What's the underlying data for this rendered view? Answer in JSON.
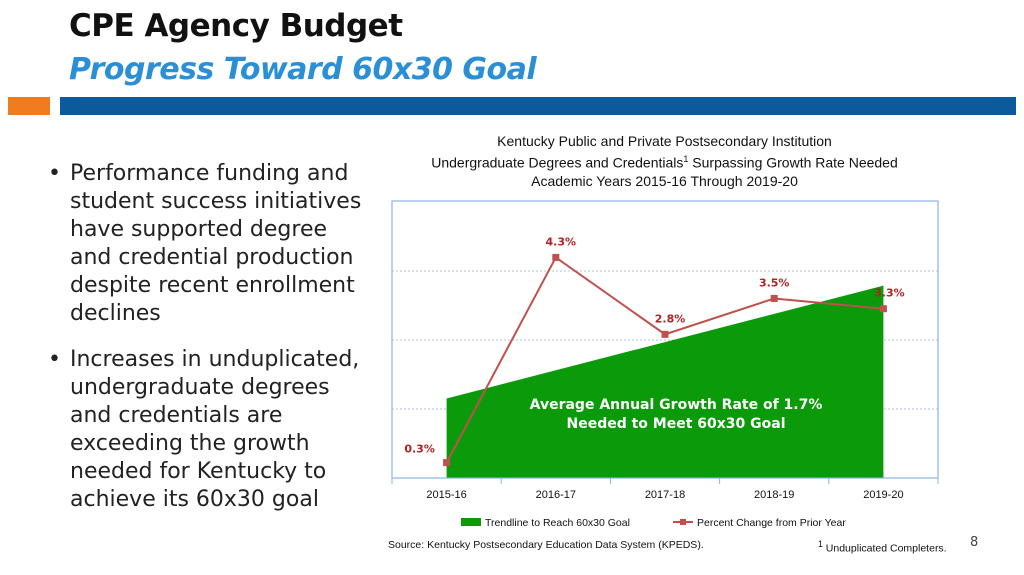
{
  "slide": {
    "title": "CPE Agency Budget",
    "subtitle": "Progress Toward 60x30 Goal",
    "page_number": "8",
    "bullets": [
      "Performance funding and student success initiatives have supported degree and credential production despite recent enrollment declines",
      "Increases in unduplicated, undergraduate degrees and credentials are exceeding the growth needed for Kentucky to achieve its 60x30 goal"
    ]
  },
  "chart_data": {
    "type": "line",
    "title_lines": [
      "Kentucky Public and Private Postsecondary Institution",
      "Undergraduate Degrees and Credentials",
      "Academic Years 2015-16 Through 2019-20"
    ],
    "title_superscript": "1",
    "title_line2_suffix": " Surpassing Growth Rate Needed",
    "categories": [
      "2015-16",
      "2016-17",
      "2017-18",
      "2018-19",
      "2019-20"
    ],
    "series": [
      {
        "name": "Trendline to Reach 60x30 Goal",
        "kind": "area",
        "color": "#0a9a0a",
        "values": [
          1.55,
          2.1,
          2.65,
          3.2,
          3.75
        ]
      },
      {
        "name": "Percent Change from Prior Year",
        "kind": "line",
        "color": "#c0504d",
        "values": [
          0.3,
          4.3,
          2.8,
          3.5,
          3.3
        ]
      }
    ],
    "point_labels": [
      "0.3%",
      "4.3%",
      "2.8%",
      "3.5%",
      "3.3%"
    ],
    "label_color": "#b22222",
    "area_annotation": [
      "Average Annual Growth Rate of 1.7%",
      "Needed to Meet 60x30 Goal"
    ],
    "legend_position": "bottom",
    "grid": true,
    "source": "Source:   Kentucky Postsecondary Education Data System (KPEDS).",
    "footnote_mark": "1",
    "footnote_text": " Unduplicated Completers."
  }
}
